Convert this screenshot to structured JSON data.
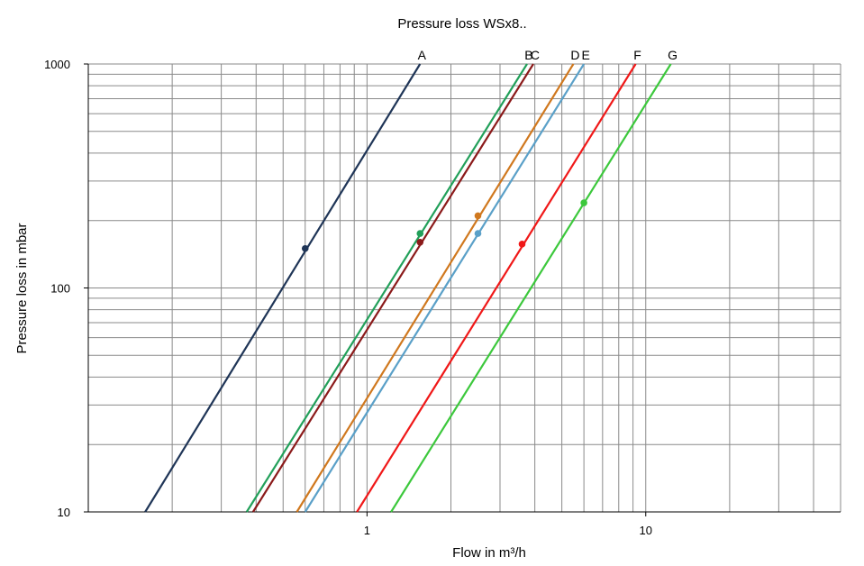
{
  "chart_data": {
    "type": "line",
    "title": "Pressure loss WSx8..",
    "xlabel": "Flow in m³/h",
    "ylabel": "Pressure loss in mbar",
    "x_scale": "log",
    "y_scale": "log",
    "xlim": [
      0.1,
      50
    ],
    "ylim": [
      10,
      1000
    ],
    "x_ticks": [
      {
        "value": 1,
        "label": "1"
      },
      {
        "value": 10,
        "label": "10"
      }
    ],
    "y_ticks": [
      {
        "value": 10,
        "label": "10"
      },
      {
        "value": 100,
        "label": "100"
      },
      {
        "value": 1000,
        "label": "1000"
      }
    ],
    "grid": true,
    "legend": "none",
    "series": [
      {
        "name": "A",
        "color": "#1f3557",
        "points": [
          [
            0.16,
            10
          ],
          [
            1.55,
            1000
          ]
        ],
        "marker": [
          0.6,
          150
        ]
      },
      {
        "name": "B",
        "color": "#22a05a",
        "points": [
          [
            0.37,
            10
          ],
          [
            3.75,
            1000
          ]
        ],
        "marker": [
          1.55,
          175
        ]
      },
      {
        "name": "C",
        "color": "#8b1a1a",
        "points": [
          [
            0.39,
            10
          ],
          [
            3.95,
            1000
          ]
        ],
        "marker": [
          1.55,
          160
        ]
      },
      {
        "name": "D",
        "color": "#d0781e",
        "points": [
          [
            0.56,
            10
          ],
          [
            5.5,
            1000
          ]
        ],
        "marker": [
          2.5,
          210
        ]
      },
      {
        "name": "E",
        "color": "#5aa0c8",
        "points": [
          [
            0.6,
            10
          ],
          [
            6.0,
            1000
          ]
        ],
        "marker": [
          2.5,
          175
        ]
      },
      {
        "name": "F",
        "color": "#f01818",
        "points": [
          [
            0.92,
            10
          ],
          [
            9.2,
            1000
          ]
        ],
        "marker": [
          3.6,
          157
        ]
      },
      {
        "name": "G",
        "color": "#3cc83c",
        "points": [
          [
            1.22,
            10
          ],
          [
            12.3,
            1000
          ]
        ],
        "marker": [
          6.0,
          240
        ]
      }
    ]
  }
}
